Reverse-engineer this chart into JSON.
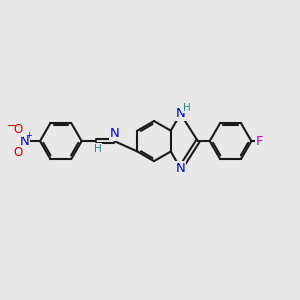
{
  "bg_color": "#e8e8e8",
  "bond_color": "#1a1a1a",
  "bond_width": 1.5,
  "atom_colors": {
    "N": "#0000ee",
    "O": "#dd0000",
    "F": "#dd00dd",
    "H": "#228888",
    "C": "#1a1a1a"
  },
  "font_size": 8.5,
  "fig_size": [
    3.0,
    3.0
  ],
  "dpi": 100
}
